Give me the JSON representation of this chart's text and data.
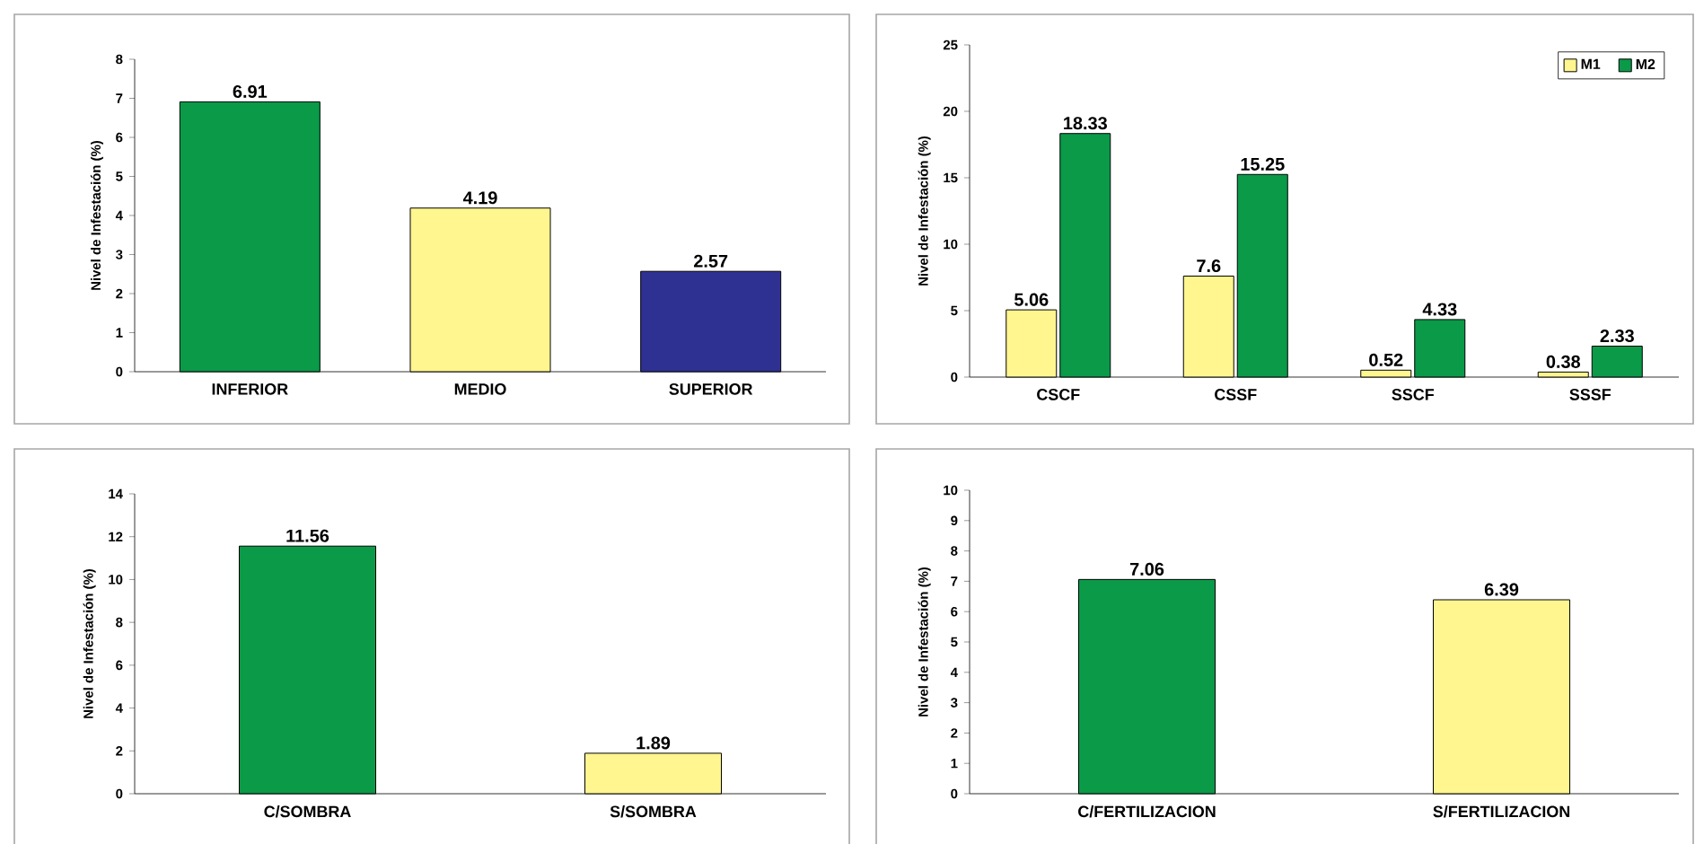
{
  "chart_data": [
    {
      "type": "bar",
      "ylabel": "Nivel de Infestación (%)",
      "categories": [
        "INFERIOR",
        "MEDIO",
        "SUPERIOR"
      ],
      "values": [
        6.91,
        4.19,
        2.57
      ],
      "colors": [
        "#0a9a48",
        "#fff68f",
        "#2e3192"
      ],
      "ylim": [
        0,
        8
      ],
      "yticks": [
        0,
        1,
        2,
        3,
        4,
        5,
        6,
        7,
        8
      ],
      "data_labels": true
    },
    {
      "type": "bar",
      "ylabel": "Nivel de Infestación (%)",
      "categories": [
        "CSCF",
        "CSSF",
        "SSCF",
        "SSSF"
      ],
      "series": [
        {
          "name": "M1",
          "color": "#fff68f",
          "values": [
            5.06,
            7.6,
            0.52,
            0.38
          ]
        },
        {
          "name": "M2",
          "color": "#0a9a48",
          "values": [
            18.33,
            15.25,
            4.33,
            2.33
          ]
        }
      ],
      "ylim": [
        0,
        25
      ],
      "yticks": [
        0,
        5,
        10,
        15,
        20,
        25
      ],
      "legend": "top right",
      "data_labels": true
    },
    {
      "type": "bar",
      "ylabel": "Nivel de Infestación (%)",
      "categories": [
        "C/SOMBRA",
        "S/SOMBRA"
      ],
      "values": [
        11.56,
        1.89
      ],
      "colors": [
        "#0a9a48",
        "#fff68f"
      ],
      "ylim": [
        0,
        14
      ],
      "yticks": [
        0,
        2,
        4,
        6,
        8,
        10,
        12,
        14
      ],
      "data_labels": true
    },
    {
      "type": "bar",
      "ylabel": "Nivel de Infestación (%)",
      "categories": [
        "C/FERTILIZACION",
        "S/FERTILIZACION"
      ],
      "values": [
        7.06,
        6.39
      ],
      "colors": [
        "#0a9a48",
        "#fff68f"
      ],
      "ylim": [
        0,
        10
      ],
      "yticks": [
        0,
        1,
        2,
        3,
        4,
        5,
        6,
        7,
        8,
        9,
        10
      ],
      "data_labels": true
    }
  ]
}
